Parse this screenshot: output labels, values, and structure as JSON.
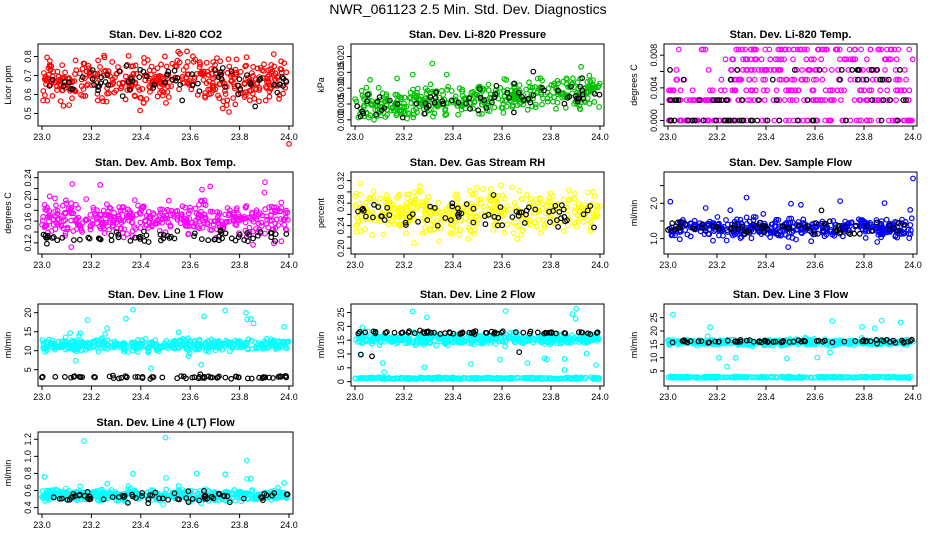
{
  "figure_title": "NWR_061123  2.5 Min. Std. Dev. Diagnostics",
  "chart_data": [
    {
      "type": "scatter",
      "title": "Stan. Dev. Li-820 CO2",
      "ylabel": "Licor ppm",
      "color": "#ff0000",
      "xlim": [
        23.0,
        24.0
      ],
      "ylim": [
        0.45,
        0.85
      ],
      "yticks": [
        0.5,
        0.6,
        0.7,
        0.8
      ],
      "ytick_labels": [
        "0.5",
        "0.6",
        "0.7",
        "0.8"
      ],
      "xticks": [
        23.0,
        23.2,
        23.4,
        23.6,
        23.8,
        24.0
      ],
      "xtick_labels": [
        "23.0",
        "23.2",
        "23.4",
        "23.6",
        "23.8",
        "24.0"
      ],
      "series": [
        {
          "name": "main",
          "color": "#ff0000",
          "band": [
            0.55,
            0.8
          ],
          "range": [
            0.5,
            0.83
          ],
          "outliers": [
            [
              24.0,
              0.34
            ]
          ]
        },
        {
          "name": "black",
          "color": "#000000",
          "band": [
            0.56,
            0.76
          ],
          "range": [
            0.52,
            0.8
          ]
        }
      ]
    },
    {
      "type": "scatter",
      "title": "Stan. Dev. Li-820 Pressure",
      "ylabel": "kPa",
      "color": "#00c000",
      "xlim": [
        23.0,
        24.0
      ],
      "ylim": [
        -0.001,
        0.023
      ],
      "yticks": [
        0.0,
        0.005,
        0.01,
        0.015,
        0.02
      ],
      "ytick_labels": [
        "0.000",
        "0.005",
        "0.010",
        "0.015",
        "0.020"
      ],
      "xticks": [
        23.0,
        23.2,
        23.4,
        23.6,
        23.8,
        24.0
      ],
      "xtick_labels": [
        "23.0",
        "23.2",
        "23.4",
        "23.6",
        "23.8",
        "24.0"
      ],
      "series": [
        {
          "name": "main",
          "color": "#00c000",
          "band": [
            0.0,
            0.011
          ],
          "range": [
            0.0,
            0.02
          ],
          "trend": 0.006
        },
        {
          "name": "black",
          "color": "#000000",
          "band": [
            0.0,
            0.01
          ],
          "range": [
            0.0,
            0.016
          ],
          "trend": 0.006
        }
      ]
    },
    {
      "type": "scatter",
      "title": "Stan. Dev. Li-820 Temp.",
      "ylabel": "degrees C",
      "color": "#ff00ff",
      "xlim": [
        23.0,
        24.0
      ],
      "ylim": [
        -0.0003,
        0.009
      ],
      "yticks": [
        0.0,
        0.002,
        0.004,
        0.006,
        0.008
      ],
      "ytick_labels": [
        "0.000",
        "",
        "0.004",
        "",
        "0.008"
      ],
      "xticks": [
        23.0,
        23.2,
        23.4,
        23.6,
        23.8,
        24.0
      ],
      "xtick_labels": [
        "23.0",
        "23.2",
        "23.4",
        "23.6",
        "23.8",
        "24.0"
      ],
      "series": [
        {
          "name": "main",
          "color": "#ff00ff",
          "levels": [
            0.0,
            0.0025,
            0.0037,
            0.005,
            0.0062,
            0.0075,
            0.0087
          ]
        },
        {
          "name": "black",
          "color": "#000000",
          "levels": [
            0.0,
            0.0025,
            0.005,
            0.0062
          ]
        }
      ]
    },
    {
      "type": "scatter",
      "title": "Stan. Dev. Amb. Box Temp.",
      "ylabel": "degrees C",
      "color": "#ff00ff",
      "xlim": [
        23.0,
        24.0
      ],
      "ylim": [
        0.105,
        0.245
      ],
      "yticks": [
        0.12,
        0.14,
        0.16,
        0.18,
        0.2,
        0.22,
        0.24
      ],
      "ytick_labels": [
        "0.12",
        "",
        "0.16",
        "",
        "0.20",
        "",
        "0.24"
      ],
      "xticks": [
        23.0,
        23.2,
        23.4,
        23.6,
        23.8,
        24.0
      ],
      "xtick_labels": [
        "23.0",
        "23.2",
        "23.4",
        "23.6",
        "23.8",
        "24.0"
      ],
      "series": [
        {
          "name": "main",
          "color": "#ff00ff",
          "band": [
            0.13,
            0.2
          ],
          "range": [
            0.11,
            0.235
          ]
        },
        {
          "name": "black",
          "color": "#000000",
          "band": [
            0.12,
            0.145
          ],
          "range": [
            0.11,
            0.17
          ]
        }
      ]
    },
    {
      "type": "scatter",
      "title": "Stan. Dev. Gas Stream RH",
      "ylabel": "percent",
      "color": "#ffff00",
      "xlim": [
        23.0,
        24.0
      ],
      "ylim": [
        0.195,
        0.33
      ],
      "yticks": [
        0.2,
        0.22,
        0.24,
        0.26,
        0.28,
        0.3,
        0.32
      ],
      "ytick_labels": [
        "0.20",
        "",
        "0.24",
        "",
        "0.28",
        "",
        "0.32"
      ],
      "xticks": [
        23.0,
        23.2,
        23.4,
        23.6,
        23.8,
        24.0
      ],
      "xtick_labels": [
        "23.0",
        "23.2",
        "23.4",
        "23.6",
        "23.8",
        "24.0"
      ],
      "series": [
        {
          "name": "main",
          "color": "#ffff00",
          "band": [
            0.22,
            0.31
          ],
          "range": [
            0.2,
            0.325
          ]
        },
        {
          "name": "black",
          "color": "#000000",
          "band": [
            0.23,
            0.29
          ],
          "range": [
            0.2,
            0.31
          ]
        }
      ]
    },
    {
      "type": "scatter",
      "title": "Stan. Dev. Sample Flow",
      "ylabel": "ml/min",
      "color": "#0000ff",
      "xlim": [
        23.0,
        24.0
      ],
      "ylim": [
        0.65,
        2.8
      ],
      "yticks": [
        1.0,
        1.5,
        2.0,
        2.5
      ],
      "ytick_labels": [
        "1.0",
        "",
        "2.0",
        ""
      ],
      "xticks": [
        23.0,
        23.2,
        23.4,
        23.6,
        23.8,
        24.0
      ],
      "xtick_labels": [
        "23.0",
        "23.2",
        "23.4",
        "23.6",
        "23.8",
        "24.0"
      ],
      "series": [
        {
          "name": "main",
          "color": "#0000ff",
          "band": [
            1.0,
            1.6
          ],
          "range": [
            0.7,
            2.2
          ],
          "outliers": [
            [
              24.0,
              2.7
            ]
          ]
        },
        {
          "name": "black",
          "color": "#000000",
          "band": [
            1.1,
            1.5
          ],
          "range": [
            1.0,
            1.8
          ]
        }
      ]
    },
    {
      "type": "scatter",
      "title": "Stan. Dev. Line 1 Flow",
      "ylabel": "ml/min",
      "color": "#00ffff",
      "xlim": [
        23.0,
        24.0
      ],
      "ylim": [
        1.5,
        21.5
      ],
      "yticks": [
        5,
        10,
        15,
        20
      ],
      "ytick_labels": [
        "5",
        "10",
        "15",
        "20"
      ],
      "xticks": [
        23.0,
        23.2,
        23.4,
        23.6,
        23.8,
        24.0
      ],
      "xtick_labels": [
        "23.0",
        "23.2",
        "23.4",
        "23.6",
        "23.8",
        "24.0"
      ],
      "series": [
        {
          "name": "main",
          "color": "#00ffff",
          "band": [
            9.5,
            13.5
          ],
          "range": [
            5.0,
            21.0
          ]
        },
        {
          "name": "black",
          "color": "#000000",
          "band": [
            2.6,
            3.6
          ],
          "range": [
            2.4,
            3.8
          ]
        }
      ]
    },
    {
      "type": "scatter",
      "title": "Stan. Dev. Line 2 Flow",
      "ylabel": "ml/min",
      "color": "#00ffff",
      "xlim": [
        23.0,
        24.0
      ],
      "ylim": [
        -0.5,
        27
      ],
      "yticks": [
        0,
        5,
        10,
        15,
        20,
        25
      ],
      "ytick_labels": [
        "0",
        "5",
        "10",
        "15",
        "20",
        "25"
      ],
      "xticks": [
        23.0,
        23.2,
        23.4,
        23.6,
        23.8,
        24.0
      ],
      "xtick_labels": [
        "23.0",
        "23.2",
        "23.4",
        "23.6",
        "23.8",
        "24.0"
      ],
      "series": [
        {
          "name": "main",
          "color": "#00ffff",
          "band": [
            13.0,
            18.0
          ],
          "range": [
            3.0,
            27.0
          ]
        },
        {
          "name": "low",
          "color": "#00ffff",
          "band": [
            0.8,
            1.6
          ]
        },
        {
          "name": "black",
          "color": "#000000",
          "band": [
            17.0,
            18.5
          ],
          "range": [
            7.0,
            18.5
          ]
        }
      ]
    },
    {
      "type": "scatter",
      "title": "Stan. Dev. Line 3 Flow",
      "ylabel": "ml/min",
      "color": "#00ffff",
      "xlim": [
        23.0,
        24.0
      ],
      "ylim": [
        0.5,
        29
      ],
      "yticks": [
        5,
        10,
        15,
        20,
        25
      ],
      "ytick_labels": [
        "5",
        "10",
        "15",
        "20",
        "25"
      ],
      "xticks": [
        23.0,
        23.2,
        23.4,
        23.6,
        23.8,
        24.0
      ],
      "xtick_labels": [
        "23.0",
        "23.2",
        "23.4",
        "23.6",
        "23.8",
        "24.0"
      ],
      "series": [
        {
          "name": "main",
          "color": "#00ffff",
          "band": [
            14.5,
            17.0
          ],
          "range": [
            5.0,
            28.0
          ]
        },
        {
          "name": "low",
          "color": "#00ffff",
          "band": [
            2.3,
            3.0
          ]
        },
        {
          "name": "black",
          "color": "#000000",
          "band": [
            15.5,
            16.8
          ],
          "range": [
            15.0,
            17.0
          ]
        }
      ]
    },
    {
      "type": "scatter",
      "title": "Stan. Dev. Line 4 (LT) Flow",
      "ylabel": "ml/min",
      "color": "#00ffff",
      "xlim": [
        23.0,
        24.0
      ],
      "ylim": [
        0.36,
        1.25
      ],
      "yticks": [
        0.4,
        0.6,
        0.8,
        1.0,
        1.2
      ],
      "ytick_labels": [
        "0.4",
        "0.6",
        "0.8",
        "1.0",
        "1.2"
      ],
      "xticks": [
        23.0,
        23.2,
        23.4,
        23.6,
        23.8,
        24.0
      ],
      "xtick_labels": [
        "23.0",
        "23.2",
        "23.4",
        "23.6",
        "23.8",
        "24.0"
      ],
      "series": [
        {
          "name": "main",
          "color": "#00ffff",
          "band": [
            0.47,
            0.62
          ],
          "range": [
            0.42,
            0.8
          ],
          "outliers": [
            [
              23.17,
              1.18
            ],
            [
              23.5,
              1.22
            ],
            [
              23.83,
              0.95
            ]
          ]
        },
        {
          "name": "black",
          "color": "#000000",
          "band": [
            0.45,
            0.6
          ],
          "range": [
            0.42,
            0.62
          ]
        }
      ]
    }
  ]
}
